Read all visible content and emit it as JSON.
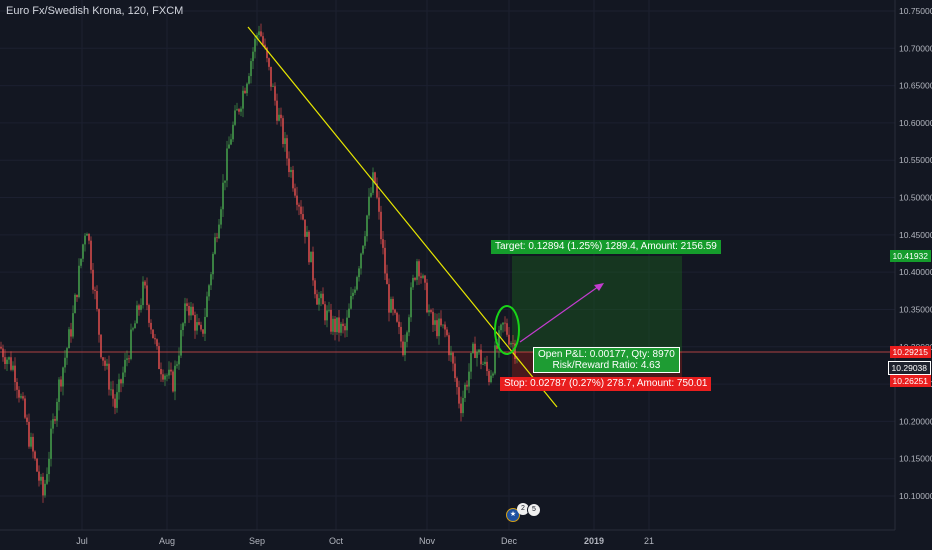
{
  "header": {
    "title": "Euro Fx/Swedish Krona, 120, FXCM"
  },
  "price_axis": {
    "ticks": [
      "10.75000",
      "10.70000",
      "10.65000",
      "10.60000",
      "10.55000",
      "10.50000",
      "10.45000",
      "10.40000",
      "10.35000",
      "10.30000",
      "10.25000",
      "10.20000",
      "10.15000",
      "10.10000"
    ]
  },
  "time_axis": {
    "labels": [
      "Jul",
      "Aug",
      "Sep",
      "Oct",
      "Nov",
      "Dec",
      "2019",
      "21"
    ]
  },
  "price_tags": {
    "target": "10.41932",
    "entry": "10.29215",
    "current": "10.29038",
    "stop": "10.26251"
  },
  "position": {
    "target_label": "Target: 0.12894 (1.25%) 1289.4, Amount: 2156.59",
    "open_pl_label": "Open P&L: 0.00177, Qty: 8970",
    "risk_reward_label": "Risk/Reward Ratio: 4.63",
    "stop_label": "Stop: 0.02787 (0.27%) 278.7, Amount: 750.01"
  },
  "events": {
    "badge_a": "2",
    "badge_b": "5"
  },
  "colors": {
    "background": "#131722",
    "up_candle": "#4caf50",
    "down_candle": "#ef5350",
    "trendline": "#e7e700",
    "target_zone": "#1b5e20",
    "stop_zone": "#6d1b1b",
    "target_label_bg": "#159c2c",
    "stop_label_bg": "#e91e1e",
    "arrow": "#c33ccf",
    "circle": "#18d418"
  },
  "chart_data": {
    "type": "candlestick",
    "title": "Euro Fx/Swedish Krona, 120, FXCM",
    "ylim": [
      10.075,
      10.76
    ],
    "x_labels": [
      "Jul",
      "Aug",
      "Sep",
      "Oct",
      "Nov",
      "Dec",
      "2019",
      "21"
    ],
    "price_path": [
      {
        "x": "Jun",
        "close": 10.3
      },
      {
        "x": "Jun",
        "close": 10.27
      },
      {
        "x": "Jun",
        "close": 10.18
      },
      {
        "x": "Jun",
        "close": 10.1
      },
      {
        "x": "Jun",
        "close": 10.24
      },
      {
        "x": "Jul",
        "close": 10.33
      },
      {
        "x": "Jul",
        "close": 10.47
      },
      {
        "x": "Jul",
        "close": 10.3
      },
      {
        "x": "Jul",
        "close": 10.22
      },
      {
        "x": "Jul",
        "close": 10.3
      },
      {
        "x": "Jul",
        "close": 10.38
      },
      {
        "x": "Jul",
        "close": 10.28
      },
      {
        "x": "Aug",
        "close": 10.25
      },
      {
        "x": "Aug",
        "close": 10.36
      },
      {
        "x": "Aug",
        "close": 10.31
      },
      {
        "x": "Aug",
        "close": 10.45
      },
      {
        "x": "Aug",
        "close": 10.58
      },
      {
        "x": "Aug",
        "close": 10.65
      },
      {
        "x": "Sep",
        "close": 10.73
      },
      {
        "x": "Sep",
        "close": 10.64
      },
      {
        "x": "Sep",
        "close": 10.55
      },
      {
        "x": "Sep",
        "close": 10.48
      },
      {
        "x": "Sep",
        "close": 10.37
      },
      {
        "x": "Sep",
        "close": 10.33
      },
      {
        "x": "Oct",
        "close": 10.32
      },
      {
        "x": "Oct",
        "close": 10.42
      },
      {
        "x": "Oct",
        "close": 10.53
      },
      {
        "x": "Oct",
        "close": 10.36
      },
      {
        "x": "Oct",
        "close": 10.3
      },
      {
        "x": "Oct",
        "close": 10.42
      },
      {
        "x": "Oct",
        "close": 10.33
      },
      {
        "x": "Nov",
        "close": 10.32
      },
      {
        "x": "Nov",
        "close": 10.22
      },
      {
        "x": "Nov",
        "close": 10.3
      },
      {
        "x": "Nov",
        "close": 10.26
      },
      {
        "x": "Nov",
        "close": 10.33
      },
      {
        "x": "Nov",
        "close": 10.29
      }
    ]
  }
}
